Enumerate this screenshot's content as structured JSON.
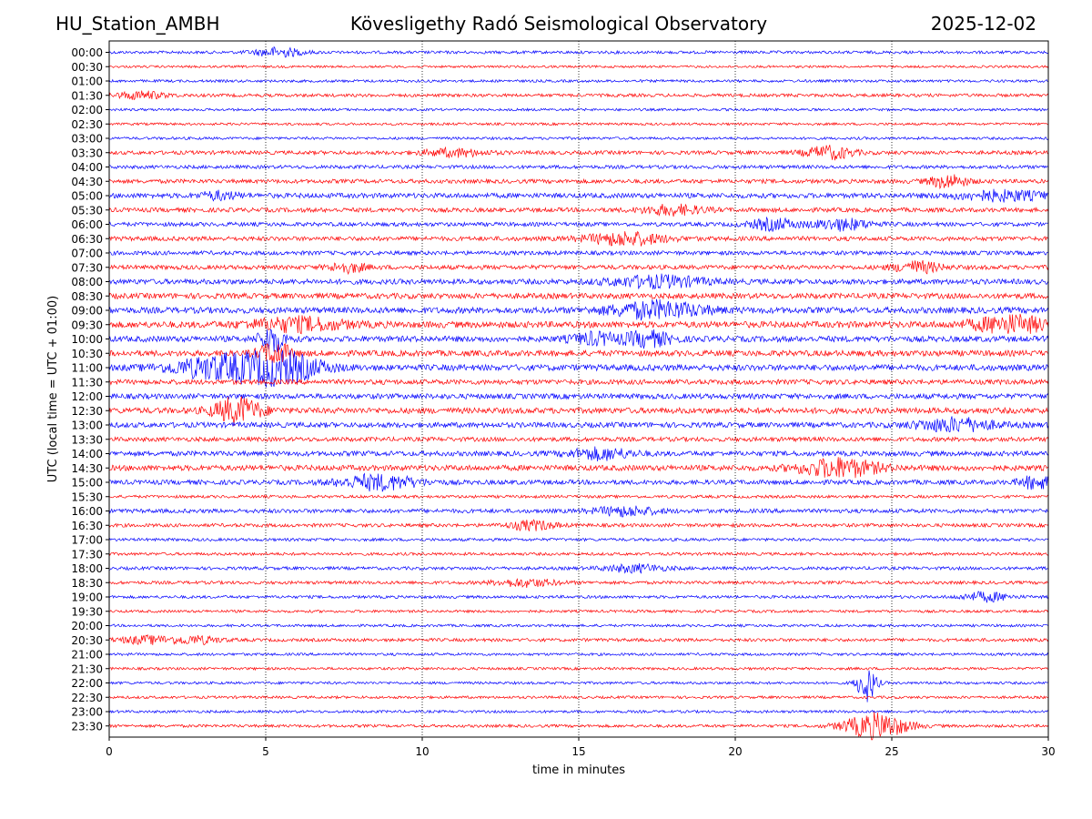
{
  "header": {
    "station": "HU_Station_AMBH",
    "title": "Kövesligethy Radó Seismological Observatory",
    "date": "2025-12-02"
  },
  "chart_data": {
    "type": "line",
    "subtype": "helicorder",
    "xlabel": "time in minutes",
    "ylabel": "UTC (local time = UTC + 01:00)",
    "xlim": [
      0,
      30
    ],
    "xticks": [
      0,
      5,
      10,
      15,
      20,
      25,
      30
    ],
    "x_gridlines": [
      5,
      10,
      15,
      20,
      25
    ],
    "grid_style": "dotted vertical",
    "row_labels": [
      "00:00",
      "00:30",
      "01:00",
      "01:30",
      "02:00",
      "02:30",
      "03:00",
      "03:30",
      "04:00",
      "04:30",
      "05:00",
      "05:30",
      "06:00",
      "06:30",
      "07:00",
      "07:30",
      "08:00",
      "08:30",
      "09:00",
      "09:30",
      "10:00",
      "10:30",
      "11:00",
      "11:30",
      "12:00",
      "12:30",
      "13:00",
      "13:30",
      "14:00",
      "14:30",
      "15:00",
      "15:30",
      "16:00",
      "16:30",
      "17:00",
      "17:30",
      "18:00",
      "18:30",
      "19:00",
      "19:30",
      "20:00",
      "20:30",
      "21:00",
      "21:30",
      "22:00",
      "22:30",
      "23:00",
      "23:30"
    ],
    "colors": {
      "even_rows": "#0000ff",
      "odd_rows": "#ff0000"
    },
    "row_noise_levels": [
      0.5,
      0.3,
      0.4,
      0.6,
      0.35,
      0.35,
      0.4,
      0.8,
      0.7,
      0.9,
      1.2,
      1.0,
      0.9,
      1.0,
      0.9,
      1.0,
      1.3,
      1.4,
      1.6,
      1.7,
      1.5,
      1.5,
      1.6,
      1.2,
      1.3,
      1.5,
      1.3,
      1.0,
      1.2,
      1.4,
      1.1,
      0.5,
      0.9,
      0.7,
      0.5,
      0.5,
      0.6,
      0.6,
      0.5,
      0.4,
      0.4,
      0.6,
      0.4,
      0.4,
      0.4,
      0.4,
      0.4,
      0.5
    ],
    "events": [
      {
        "row": 0,
        "minute": 5.4,
        "amplitude": 5,
        "duration": 1.5
      },
      {
        "row": 3,
        "minute": 1.0,
        "amplitude": 4,
        "duration": 1.6
      },
      {
        "row": 7,
        "minute": 11.0,
        "amplitude": 4,
        "duration": 2.0
      },
      {
        "row": 7,
        "minute": 23.0,
        "amplitude": 7,
        "duration": 1.5
      },
      {
        "row": 9,
        "minute": 26.8,
        "amplitude": 7,
        "duration": 1.2
      },
      {
        "row": 10,
        "minute": 3.5,
        "amplitude": 4,
        "duration": 1.2
      },
      {
        "row": 10,
        "minute": 28.5,
        "amplitude": 5,
        "duration": 3.0
      },
      {
        "row": 11,
        "minute": 18.0,
        "amplitude": 5,
        "duration": 2.0
      },
      {
        "row": 12,
        "minute": 21.2,
        "amplitude": 6,
        "duration": 1.5
      },
      {
        "row": 12,
        "minute": 23.4,
        "amplitude": 6,
        "duration": 1.8
      },
      {
        "row": 13,
        "minute": 16.5,
        "amplitude": 7,
        "duration": 2.5
      },
      {
        "row": 15,
        "minute": 7.6,
        "amplitude": 5,
        "duration": 1.2
      },
      {
        "row": 15,
        "minute": 25.8,
        "amplitude": 6,
        "duration": 1.5
      },
      {
        "row": 16,
        "minute": 17.5,
        "amplitude": 6,
        "duration": 3.0
      },
      {
        "row": 18,
        "minute": 17.5,
        "amplitude": 9,
        "duration": 3.0
      },
      {
        "row": 19,
        "minute": 6.0,
        "amplitude": 7,
        "duration": 3.0
      },
      {
        "row": 19,
        "minute": 28.8,
        "amplitude": 9,
        "duration": 2.5
      },
      {
        "row": 20,
        "minute": 5.2,
        "amplitude": 14,
        "duration": 0.8
      },
      {
        "row": 20,
        "minute": 15.5,
        "amplitude": 6,
        "duration": 1.5
      },
      {
        "row": 20,
        "minute": 17.2,
        "amplitude": 8,
        "duration": 1.5
      },
      {
        "row": 21,
        "minute": 5.3,
        "amplitude": 12,
        "duration": 1.0
      },
      {
        "row": 22,
        "minute": 3.5,
        "amplitude": 12,
        "duration": 3.0
      },
      {
        "row": 22,
        "minute": 5.5,
        "amplitude": 16,
        "duration": 2.5
      },
      {
        "row": 25,
        "minute": 4.1,
        "amplitude": 14,
        "duration": 1.5
      },
      {
        "row": 26,
        "minute": 27.0,
        "amplitude": 7,
        "duration": 2.5
      },
      {
        "row": 28,
        "minute": 15.7,
        "amplitude": 6,
        "duration": 2.0
      },
      {
        "row": 29,
        "minute": 23.3,
        "amplitude": 10,
        "duration": 2.5
      },
      {
        "row": 30,
        "minute": 8.6,
        "amplitude": 8,
        "duration": 2.5
      },
      {
        "row": 30,
        "minute": 29.6,
        "amplitude": 7,
        "duration": 1.0
      },
      {
        "row": 32,
        "minute": 16.5,
        "amplitude": 5,
        "duration": 2.0
      },
      {
        "row": 33,
        "minute": 13.5,
        "amplitude": 5,
        "duration": 1.5
      },
      {
        "row": 36,
        "minute": 16.8,
        "amplitude": 4,
        "duration": 2.0
      },
      {
        "row": 37,
        "minute": 13.3,
        "amplitude": 4,
        "duration": 2.0
      },
      {
        "row": 38,
        "minute": 28.0,
        "amplitude": 5,
        "duration": 1.5
      },
      {
        "row": 41,
        "minute": 1.2,
        "amplitude": 4,
        "duration": 1.8
      },
      {
        "row": 41,
        "minute": 2.8,
        "amplitude": 4,
        "duration": 1.5
      },
      {
        "row": 44,
        "minute": 24.2,
        "amplitude": 20,
        "duration": 0.6
      },
      {
        "row": 47,
        "minute": 24.5,
        "amplitude": 14,
        "duration": 2.0
      }
    ]
  }
}
